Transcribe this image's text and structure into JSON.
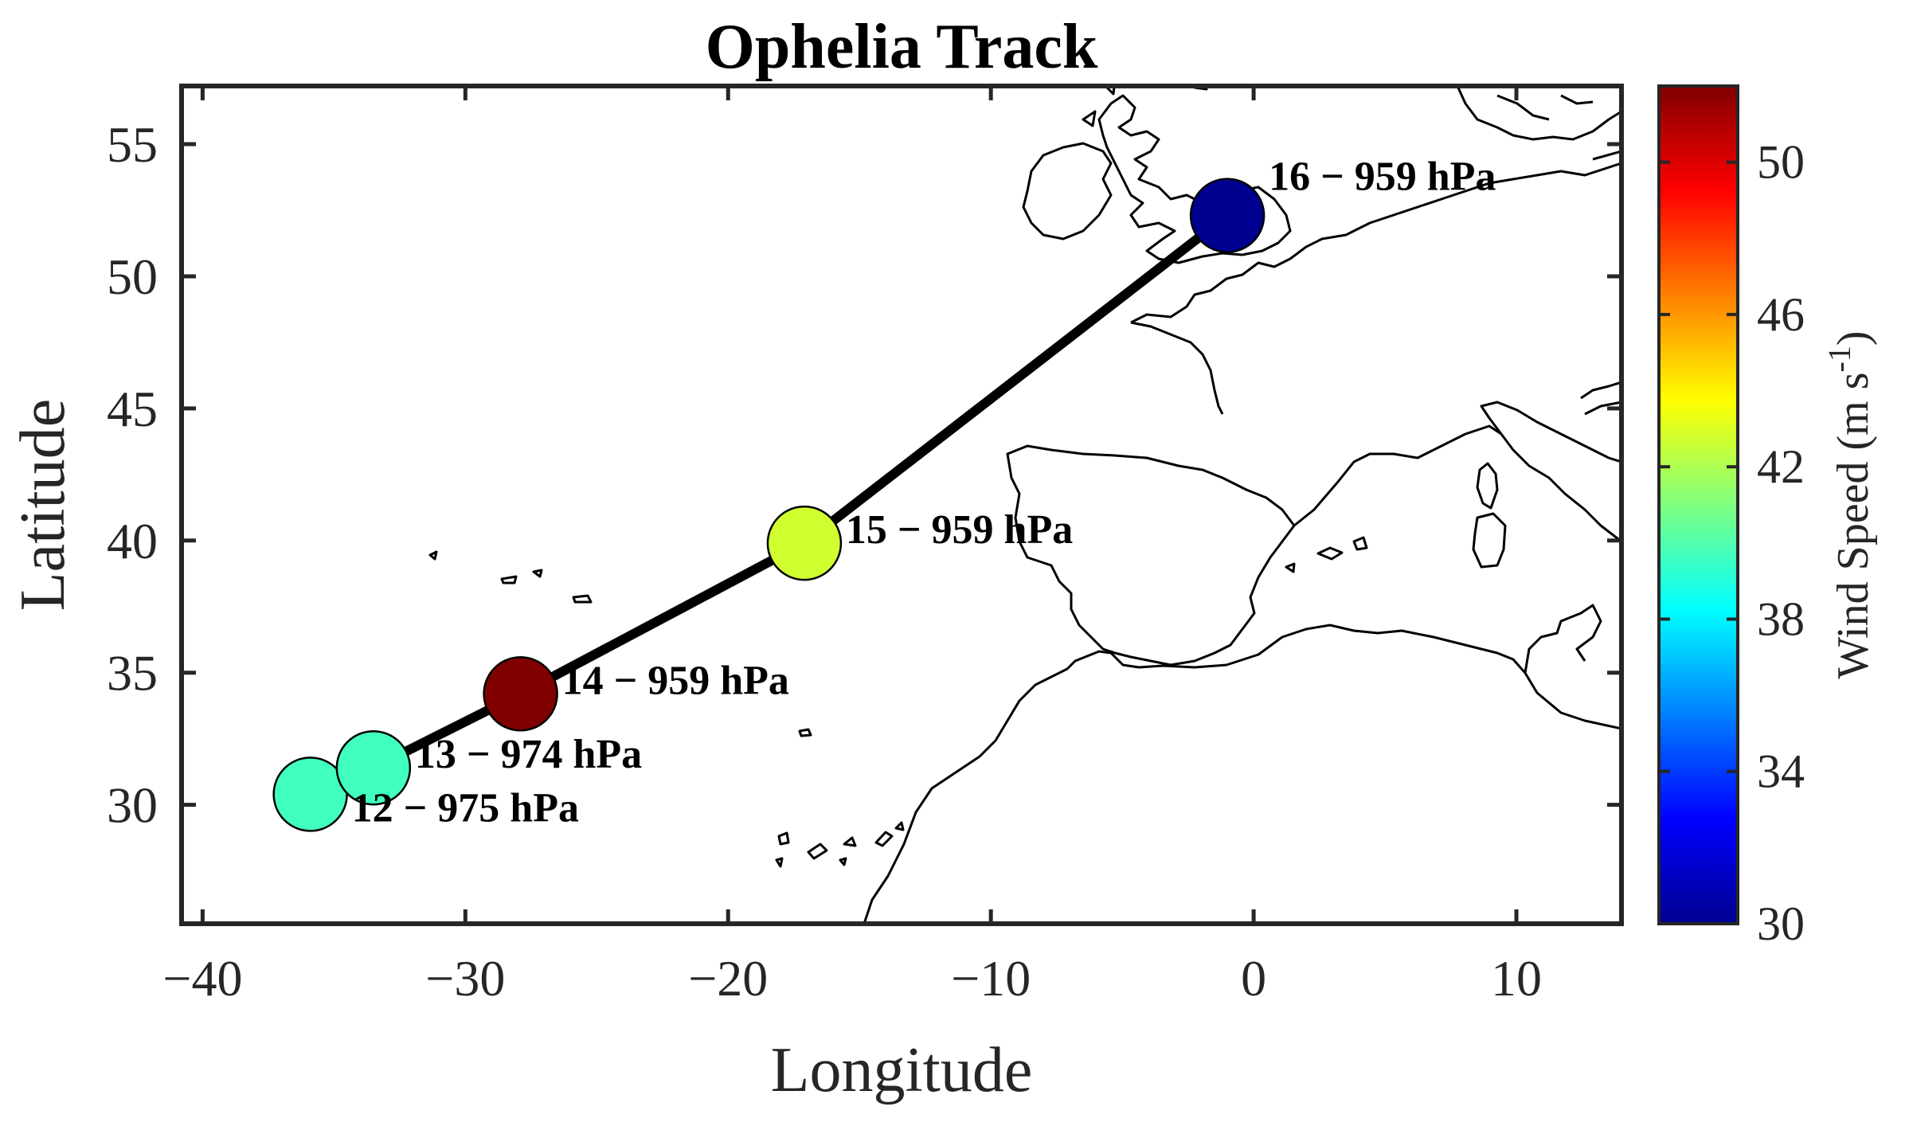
{
  "chart_data": {
    "type": "scatter",
    "title": "Ophelia Track",
    "xlabel": "Longitude",
    "ylabel": "Latitude",
    "xlim": [
      -40.8,
      14
    ],
    "ylim": [
      25.5,
      57.2
    ],
    "xticks": [
      -40,
      -30,
      -20,
      -10,
      0,
      10
    ],
    "xtick_labels": [
      "−40",
      "−30",
      "−20",
      "−10",
      "0",
      "10"
    ],
    "yticks": [
      30,
      35,
      40,
      45,
      50,
      55
    ],
    "ytick_labels": [
      "30",
      "35",
      "40",
      "45",
      "50",
      "55"
    ],
    "grid": false,
    "basemap": "coastlines",
    "track_color": "#000000",
    "series": [
      {
        "points": [
          {
            "lon": -35.9,
            "lat": 30.4,
            "wind": 41.0,
            "label": "12 − 975 hPa",
            "color": "#40ffc0"
          },
          {
            "lon": -33.5,
            "lat": 31.4,
            "wind": 41.0,
            "label": "13 − 974 hPa",
            "color": "#40ffc0"
          },
          {
            "lon": -27.9,
            "lat": 34.2,
            "wind": 52.0,
            "label": "14 − 959 hPa",
            "color": "#800000"
          },
          {
            "lon": -17.1,
            "lat": 39.9,
            "wind": 44.5,
            "label": "15 − 959 hPa",
            "color": "#d0ff30"
          },
          {
            "lon": -1.0,
            "lat": 52.3,
            "wind": 31.0,
            "label": "16 − 959 hPa",
            "color": "#000090"
          }
        ]
      }
    ],
    "colorbar": {
      "label": "Wind Speed (m s",
      "label_sup": "-1",
      "label_close": ")",
      "range": [
        30,
        52
      ],
      "ticks": [
        30,
        34,
        38,
        42,
        46,
        50
      ],
      "tick_labels": [
        "30",
        "34",
        "38",
        "42",
        "46",
        "50"
      ],
      "colormap": "jet",
      "jet_stops": [
        "#00008f",
        "#0000ff",
        "#00ffff",
        "#ffff00",
        "#ff0000",
        "#800000"
      ]
    }
  }
}
